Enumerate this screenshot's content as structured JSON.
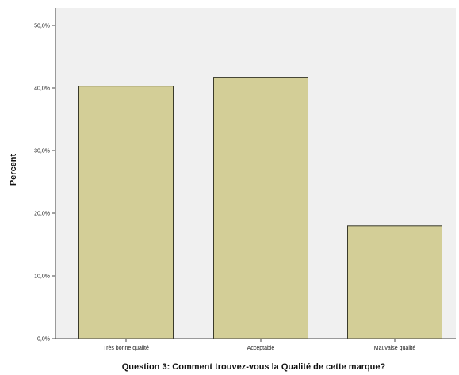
{
  "chart_data": {
    "type": "bar",
    "categories": [
      "Très bonne qualité",
      "Acceptable",
      "Mauvaise qualité"
    ],
    "values": [
      40.3,
      41.7,
      18.0
    ],
    "xlabel": "Question 3: Comment trouvez-vous la Qualité de cette marque?",
    "ylabel": "Percent",
    "ylim": [
      0,
      50
    ],
    "yticks": [
      0,
      10,
      20,
      30,
      40,
      50
    ],
    "ytick_labels": [
      "0,0%",
      "10,0%",
      "20,0%",
      "30,0%",
      "40,0%",
      "50,0%"
    ],
    "grid": false,
    "colors": {
      "plot_background": "#f0f0f0",
      "bar_fill": "#d3ce97",
      "bar_stroke": "#3a3a2a",
      "axis": "#444444"
    }
  }
}
